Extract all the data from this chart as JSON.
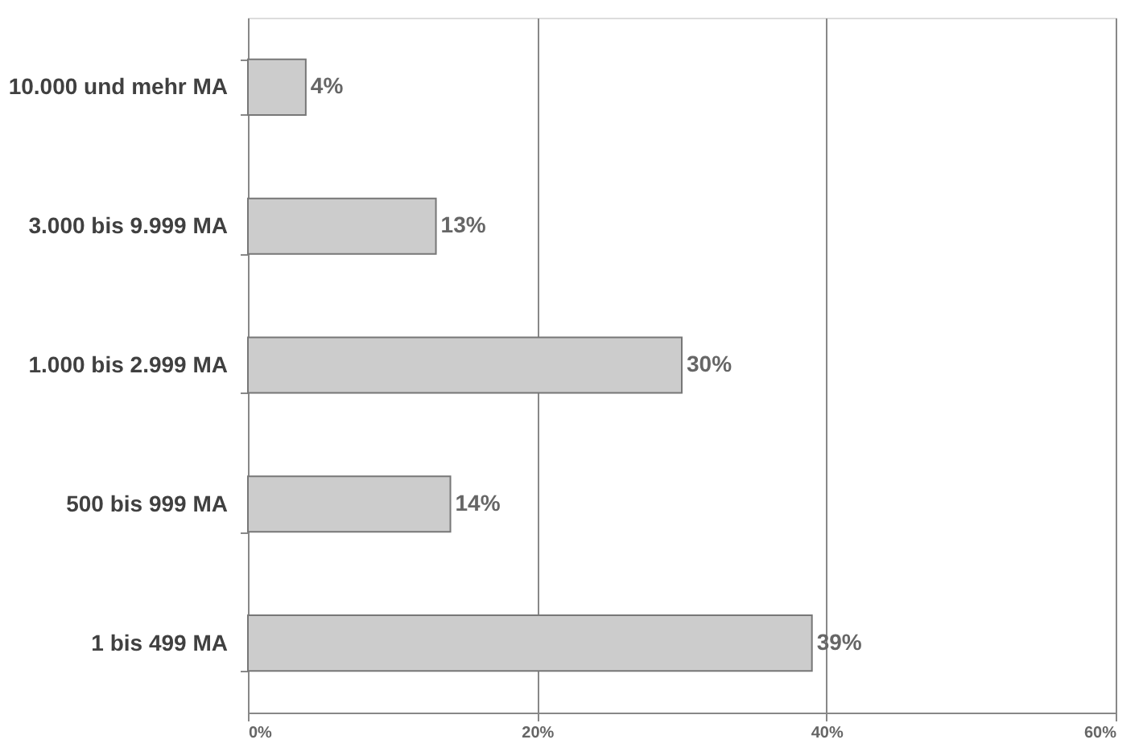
{
  "chart_data": {
    "type": "bar",
    "orientation": "horizontal",
    "categories": [
      "10.000 und mehr MA",
      "3.000 bis 9.999 MA",
      "1.000 bis 2.999 MA",
      "500 bis 999 MA",
      "1 bis 499 MA"
    ],
    "values": [
      4,
      13,
      30,
      14,
      39
    ],
    "value_labels": [
      "4%",
      "13%",
      "30%",
      "14%",
      "39%"
    ],
    "color": "#cccccc",
    "xlim": [
      0,
      60
    ],
    "xticks": [
      {
        "value": 0,
        "label": "0%"
      },
      {
        "value": 20,
        "label": "20%"
      },
      {
        "value": 40,
        "label": "40%"
      },
      {
        "value": 60,
        "label": "60%"
      }
    ],
    "grid": "x"
  }
}
